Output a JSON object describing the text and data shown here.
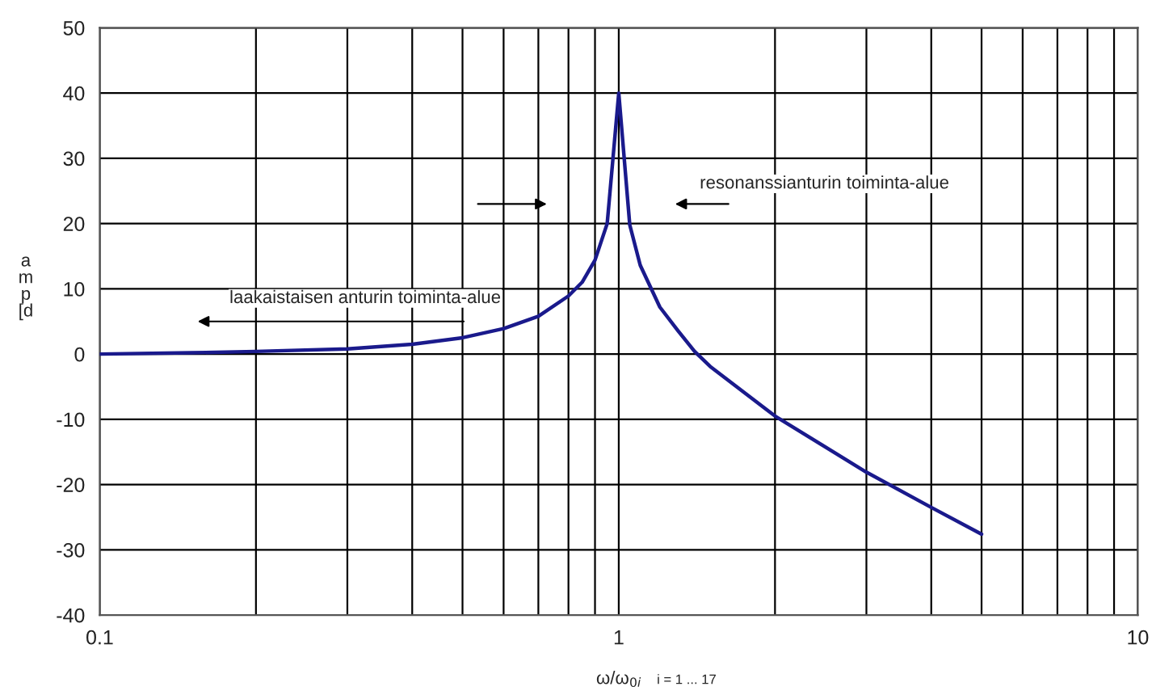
{
  "chart_data": {
    "type": "line",
    "xlabel": "ω/ω$_{0i}$",
    "ylabel": "amp [d",
    "log": "x",
    "x": [
      0.1,
      0.15,
      0.2,
      0.3,
      0.4,
      0.5,
      0.6,
      0.7,
      0.8,
      0.85,
      0.9,
      0.95,
      1.0,
      1.05,
      1.1,
      1.2,
      1.3,
      1.4,
      1.5,
      2.0,
      3.0,
      4.0,
      5.0
    ],
    "series": [
      {
        "color": "#1a1a8c",
        "values": [
          0,
          0.2,
          0.4,
          0.8,
          1.5,
          2.5,
          3.9,
          5.8,
          8.9,
          11,
          14.4,
          20,
          40,
          19.8,
          13.6,
          7.2,
          3.6,
          0.4,
          -1.9,
          -9.5,
          -18.1,
          -23.5,
          -27.6
        ]
      }
    ],
    "xlim": [
      0.1,
      10
    ],
    "xticks": [
      0.1,
      1,
      10
    ],
    "ylim": [
      -40,
      50
    ],
    "yticks": [
      -40,
      -30,
      -20,
      -10,
      0,
      10,
      20,
      30,
      40,
      50
    ],
    "grid": true,
    "legend": false,
    "marker": "none",
    "line_style": "solid",
    "annotations": [
      "laakaistaisen anturin toiminta-alue",
      "resonanssianturin toiminta-alue",
      "i = 1 ... 17"
    ]
  }
}
